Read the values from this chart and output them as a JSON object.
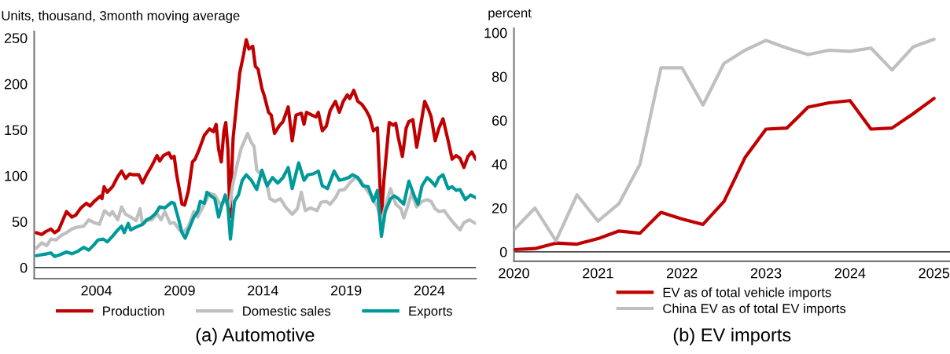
{
  "chart_data": [
    {
      "type": "line",
      "title": "(a) Automotive",
      "ylabel": "Units, thousand, 3month moving average",
      "xlim": [
        2000.26,
        2026.8
      ],
      "xticks": [
        2004,
        2009,
        2014,
        2019,
        2024
      ],
      "ylim": [
        -12,
        257
      ],
      "yticks": [
        0,
        50,
        100,
        150,
        200,
        250
      ],
      "grid": false,
      "legend": "bottom",
      "ref_lines": [
        {
          "axis": "y",
          "value": 0,
          "color": "#000000"
        }
      ],
      "series": [
        {
          "name": "Production",
          "color": "#c00000",
          "x": [
            2000.39,
            2000.71,
            2000.94,
            2001.26,
            2001.49,
            2001.73,
            2002.2,
            2002.52,
            2002.75,
            2003.07,
            2003.39,
            2003.62,
            2003.86,
            2004.25,
            2004.33,
            2004.46,
            2004.65,
            2004.96,
            2005.28,
            2005.51,
            2005.75,
            2005.99,
            2006.22,
            2006.54,
            2006.77,
            2007.01,
            2007.33,
            2007.64,
            2007.8,
            2008.03,
            2008.35,
            2008.51,
            2008.67,
            2008.82,
            2009.14,
            2009.3,
            2009.53,
            2009.77,
            2009.93,
            2010.16,
            2010.48,
            2010.79,
            2011.03,
            2011.19,
            2011.34,
            2011.5,
            2011.66,
            2011.77,
            2011.9,
            2012.02,
            2012.21,
            2012.37,
            2012.61,
            2012.84,
            2013.0,
            2013.16,
            2013.39,
            2013.55,
            2013.71,
            2013.94,
            2014.1,
            2014.34,
            2014.5,
            2014.7,
            2014.97,
            2015.21,
            2015.52,
            2015.76,
            2015.99,
            2016.31,
            2016.47,
            2016.62,
            2016.94,
            2017.18,
            2017.33,
            2017.57,
            2017.81,
            2018.04,
            2018.36,
            2018.59,
            2018.83,
            2019.07,
            2019.22,
            2019.46,
            2019.7,
            2019.93,
            2020.17,
            2020.41,
            2020.64,
            2020.88,
            2021.12,
            2021.27,
            2021.59,
            2021.83,
            2021.98,
            2022.14,
            2022.38,
            2022.61,
            2022.77,
            2023.01,
            2023.24,
            2023.48,
            2023.72,
            2023.95,
            2024.11,
            2024.35,
            2024.58,
            2024.82,
            2025.13,
            2025.37,
            2025.61,
            2025.84,
            2026.08,
            2026.32,
            2026.55,
            2026.79
          ],
          "values": [
            38,
            36,
            39,
            42,
            38,
            41,
            61,
            55,
            57,
            65,
            70,
            67,
            72,
            78,
            75,
            88,
            82,
            88,
            99,
            105,
            97,
            102,
            101,
            101,
            92,
            101,
            111,
            122,
            116,
            122,
            125,
            119,
            121,
            101,
            69,
            68,
            84,
            115,
            118,
            128,
            144,
            151,
            148,
            156,
            129,
            115,
            149,
            158,
            129,
            55,
            141,
            169,
            212,
            232,
            248,
            238,
            241,
            219,
            216,
            195,
            186,
            169,
            166,
            146,
            154,
            159,
            175,
            138,
            166,
            168,
            156,
            169,
            166,
            164,
            169,
            149,
            154,
            171,
            181,
            169,
            181,
            188,
            184,
            193,
            181,
            178,
            172,
            164,
            149,
            152,
            55,
            95,
            158,
            155,
            157,
            141,
            121,
            152,
            159,
            161,
            131,
            155,
            181,
            172,
            164,
            138,
            152,
            162,
            138,
            118,
            122,
            119,
            109,
            121,
            126,
            118
          ]
        },
        {
          "name": "Domestic sales",
          "color": "#bfbfbf",
          "x": [
            2000.39,
            2000.71,
            2001.02,
            2001.26,
            2001.57,
            2001.89,
            2002.2,
            2002.52,
            2002.83,
            2003.23,
            2003.54,
            2003.86,
            2004.17,
            2004.49,
            2004.8,
            2004.96,
            2005.28,
            2005.51,
            2005.75,
            2006.06,
            2006.38,
            2006.62,
            2006.77,
            2007.01,
            2007.33,
            2007.64,
            2007.88,
            2008.11,
            2008.43,
            2008.67,
            2008.98,
            2009.22,
            2009.53,
            2009.85,
            2010.08,
            2010.48,
            2010.79,
            2011.11,
            2011.42,
            2011.74,
            2011.97,
            2012.21,
            2012.45,
            2012.68,
            2013.08,
            2013.31,
            2013.47,
            2013.63,
            2013.94,
            2014.26,
            2014.42,
            2014.73,
            2015.05,
            2015.36,
            2015.76,
            2016.07,
            2016.31,
            2016.55,
            2016.86,
            2017.25,
            2017.49,
            2017.81,
            2018.04,
            2018.36,
            2018.59,
            2018.91,
            2019.22,
            2019.54,
            2019.86,
            2020.17,
            2020.49,
            2020.88,
            2021.12,
            2021.35,
            2021.67,
            2021.98,
            2022.3,
            2022.46,
            2022.69,
            2022.93,
            2023.24,
            2023.56,
            2023.87,
            2024.11,
            2024.35,
            2024.58,
            2024.9,
            2025.21,
            2025.53,
            2025.84,
            2026.08,
            2026.4,
            2026.79
          ],
          "values": [
            21,
            27,
            24,
            31,
            30,
            35,
            38,
            42,
            44,
            45,
            52,
            49,
            47,
            62,
            57,
            61,
            52,
            66,
            58,
            55,
            51,
            64,
            47,
            51,
            52,
            59,
            52,
            61,
            48,
            49,
            41,
            38,
            45,
            61,
            55,
            69,
            81,
            79,
            69,
            72,
            66,
            92,
            112,
            129,
            146,
            136,
            132,
            106,
            101,
            89,
            75,
            72,
            75,
            66,
            58,
            64,
            82,
            62,
            65,
            62,
            71,
            72,
            69,
            76,
            84,
            85,
            92,
            98,
            95,
            86,
            78,
            66,
            49,
            66,
            86,
            69,
            64,
            54,
            66,
            81,
            66,
            72,
            74,
            72,
            64,
            61,
            62,
            54,
            47,
            41,
            49,
            52,
            48
          ]
        },
        {
          "name": "Exports",
          "color": "#009999",
          "x": [
            2000.39,
            2000.71,
            2001.02,
            2001.26,
            2001.49,
            2001.81,
            2002.2,
            2002.52,
            2002.91,
            2003.23,
            2003.54,
            2003.86,
            2004.09,
            2004.41,
            2004.65,
            2004.96,
            2005.28,
            2005.51,
            2005.67,
            2005.91,
            2006.06,
            2006.38,
            2006.77,
            2007.01,
            2007.25,
            2007.56,
            2007.8,
            2008.11,
            2008.51,
            2008.67,
            2008.9,
            2009.14,
            2009.33,
            2009.53,
            2009.85,
            2010.08,
            2010.24,
            2010.48,
            2010.64,
            2010.87,
            2011.11,
            2011.34,
            2011.5,
            2011.74,
            2011.9,
            2012.05,
            2012.29,
            2012.53,
            2012.76,
            2013.0,
            2013.31,
            2013.63,
            2013.94,
            2014.26,
            2014.58,
            2014.89,
            2015.21,
            2015.52,
            2015.76,
            2016.15,
            2016.47,
            2016.7,
            2017.02,
            2017.33,
            2017.57,
            2017.88,
            2018.28,
            2018.59,
            2018.83,
            2019.15,
            2019.38,
            2019.7,
            2020.01,
            2020.33,
            2020.64,
            2020.88,
            2021.12,
            2021.35,
            2021.67,
            2021.9,
            2022.14,
            2022.46,
            2022.77,
            2023.09,
            2023.32,
            2023.56,
            2023.87,
            2024.11,
            2024.35,
            2024.58,
            2024.82,
            2025.13,
            2025.37,
            2025.61,
            2025.84,
            2026.16,
            2026.47,
            2026.79
          ],
          "values": [
            13,
            14,
            15,
            16,
            12,
            14,
            17,
            15,
            18,
            22,
            19,
            25,
            30,
            31,
            28,
            34,
            41,
            45,
            38,
            48,
            41,
            44,
            47,
            52,
            54,
            59,
            66,
            65,
            71,
            70,
            55,
            38,
            32,
            41,
            55,
            61,
            72,
            70,
            82,
            78,
            75,
            55,
            66,
            79,
            66,
            31,
            72,
            79,
            95,
            101,
            95,
            85,
            106,
            89,
            98,
            92,
            98,
            109,
            86,
            114,
            95,
            101,
            102,
            105,
            89,
            86,
            105,
            95,
            96,
            98,
            101,
            98,
            89,
            88,
            72,
            84,
            34,
            61,
            75,
            78,
            75,
            69,
            94,
            78,
            69,
            89,
            98,
            94,
            89,
            98,
            101,
            86,
            88,
            84,
            85,
            74,
            79,
            76
          ]
        }
      ]
    },
    {
      "type": "line",
      "title": "(b) EV imports",
      "ylabel": "percent",
      "xlim": [
        2020,
        2025.19
      ],
      "xticks": [
        2020,
        2021,
        2022,
        2023,
        2024,
        2025
      ],
      "ylim": [
        -4.3,
        102
      ],
      "yticks": [
        0,
        20,
        40,
        60,
        80,
        100
      ],
      "grid": false,
      "legend": "bottom",
      "ref_lines": [
        {
          "axis": "y",
          "value": 0,
          "color": "#000000"
        }
      ],
      "x": [
        2020,
        2020.25,
        2020.5,
        2020.75,
        2021,
        2021.25,
        2021.5,
        2021.75,
        2022,
        2022.25,
        2022.5,
        2022.75,
        2023,
        2023.25,
        2023.5,
        2023.75,
        2024,
        2024.25,
        2024.5,
        2024.75,
        2025
      ],
      "series": [
        {
          "name": "EV as of total vehicle imports",
          "color": "#c00000",
          "values": [
            1,
            1.5,
            4,
            3.5,
            6,
            9.5,
            8.5,
            18,
            15,
            12.5,
            23,
            43,
            56,
            56.5,
            66,
            68,
            69,
            56,
            56.5,
            63,
            70
          ]
        },
        {
          "name": "China EV as of total EV imports",
          "color": "#bfbfbf",
          "values": [
            10,
            20,
            5,
            26,
            14,
            22,
            40,
            84,
            84,
            67,
            86,
            92,
            96.5,
            93,
            90,
            92,
            91.5,
            93,
            83,
            93.5,
            97
          ]
        }
      ]
    }
  ]
}
